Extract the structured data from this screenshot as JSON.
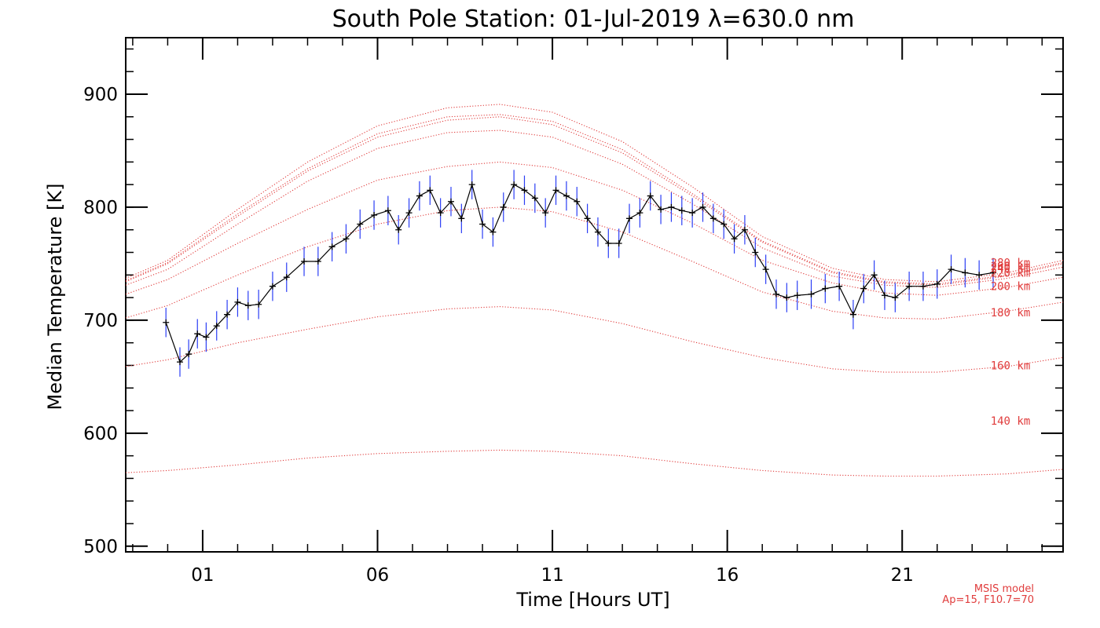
{
  "chart_data": {
    "type": "line",
    "title": "South Pole Station: 01-Jul-2019 λ=630.0 nm",
    "xlabel": "Time [Hours UT]",
    "ylabel": "Median Temperature [K]",
    "xlim": [
      -1.2,
      25.6
    ],
    "ylim": [
      495,
      950
    ],
    "x_ticks": [
      1,
      6,
      11,
      16,
      21
    ],
    "x_tick_labels": [
      "01",
      "06",
      "11",
      "16",
      "21"
    ],
    "y_ticks": [
      500,
      600,
      700,
      800,
      900
    ],
    "y_tick_labels": [
      "500",
      "600",
      "700",
      "800",
      "900"
    ],
    "colors": {
      "measurement": "#000000",
      "error_bars": "#2b3ef5",
      "model": "#e03c3c"
    },
    "measurement": {
      "name": "Median temperature",
      "error_bar_half_width": 13,
      "x": [
        -0.05,
        0.35,
        0.6,
        0.85,
        1.1,
        1.4,
        1.7,
        2.0,
        2.3,
        2.6,
        3.0,
        3.4,
        3.9,
        4.3,
        4.7,
        5.1,
        5.5,
        5.9,
        6.3,
        6.6,
        6.9,
        7.2,
        7.5,
        7.8,
        8.1,
        8.4,
        8.7,
        9.0,
        9.3,
        9.6,
        9.9,
        10.2,
        10.5,
        10.8,
        11.1,
        11.4,
        11.7,
        12.0,
        12.3,
        12.6,
        12.9,
        13.2,
        13.5,
        13.8,
        14.1,
        14.4,
        14.7,
        15.0,
        15.3,
        15.6,
        15.9,
        16.2,
        16.5,
        16.8,
        17.1,
        17.4,
        17.7,
        18.0,
        18.4,
        18.8,
        19.2,
        19.6,
        19.9,
        20.2,
        20.5,
        20.8,
        21.2,
        21.6,
        22.0,
        22.4,
        22.8,
        23.2,
        23.6
      ],
      "y": [
        698,
        663,
        670,
        688,
        685,
        695,
        705,
        716,
        713,
        714,
        730,
        738,
        752,
        752,
        765,
        772,
        785,
        793,
        797,
        780,
        795,
        810,
        815,
        795,
        805,
        790,
        820,
        785,
        778,
        800,
        820,
        815,
        808,
        795,
        815,
        810,
        805,
        790,
        778,
        768,
        768,
        790,
        795,
        810,
        798,
        800,
        797,
        795,
        800,
        790,
        785,
        772,
        780,
        760,
        745,
        723,
        720,
        722,
        723,
        728,
        730,
        705,
        728,
        740,
        722,
        720,
        730,
        730,
        732,
        745,
        742,
        740,
        742
      ]
    },
    "model": {
      "name": "MSIS model",
      "note_lines": [
        "MSIS model",
        "Ap=15, F10.7=70"
      ],
      "x": [
        -1.2,
        0,
        2,
        4,
        6,
        8,
        9.5,
        11,
        13,
        15,
        17,
        19,
        20.5,
        22,
        24,
        25.6
      ],
      "series": [
        {
          "name": "140 km",
          "label": "140 km",
          "label_value": 611,
          "values": [
            565,
            567,
            572,
            578,
            582,
            584,
            585,
            584,
            580,
            573,
            567,
            563,
            562,
            562,
            564,
            568
          ]
        },
        {
          "name": "160 km",
          "label": "160 km",
          "label_value": 660,
          "values": [
            659,
            665,
            680,
            692,
            703,
            710,
            712,
            709,
            697,
            681,
            667,
            657,
            654,
            654,
            659,
            667
          ]
        },
        {
          "name": "180 km",
          "label": "180 km",
          "label_value": 707,
          "values": [
            702,
            713,
            740,
            765,
            785,
            797,
            800,
            796,
            778,
            752,
            725,
            708,
            702,
            701,
            708,
            716
          ]
        },
        {
          "name": "200 km",
          "label": "200 km",
          "label_value": 730,
          "values": [
            723,
            736,
            768,
            798,
            824,
            836,
            840,
            835,
            815,
            786,
            753,
            733,
            724,
            722,
            729,
            738
          ]
        },
        {
          "name": "220 km",
          "label": "220 km",
          "label_value": 742,
          "values": [
            731,
            745,
            785,
            823,
            852,
            866,
            868,
            862,
            838,
            803,
            764,
            739,
            731,
            729,
            737,
            747
          ]
        },
        {
          "name": "240 km",
          "label": "240 km",
          "label_value": 746,
          "values": [
            734,
            750,
            792,
            832,
            862,
            877,
            880,
            873,
            848,
            810,
            769,
            742,
            733,
            731,
            739,
            750
          ]
        },
        {
          "name": "260 km",
          "label": "260 km",
          "label_value": 748,
          "values": [
            735,
            751,
            794,
            834,
            865,
            880,
            882,
            876,
            851,
            812,
            770,
            743,
            734,
            732,
            740,
            751
          ]
        },
        {
          "name": "280 km",
          "label": "280 km",
          "label_value": 751,
          "values": [
            737,
            753,
            798,
            840,
            872,
            888,
            891,
            884,
            858,
            818,
            774,
            746,
            736,
            734,
            742,
            753
          ]
        }
      ]
    }
  }
}
